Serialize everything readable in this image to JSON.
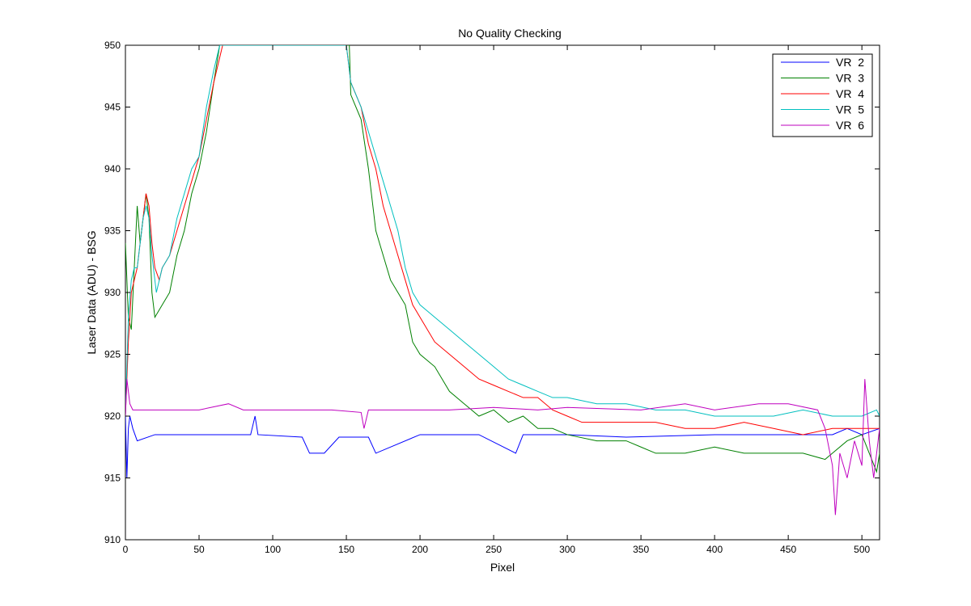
{
  "chart_data": {
    "type": "line",
    "title": "No Quality Checking",
    "xlabel": "Pixel",
    "ylabel": "Laser Data (ADU) - BSG",
    "xlim": [
      0,
      512
    ],
    "ylim": [
      910,
      950
    ],
    "xticks": [
      0,
      50,
      100,
      150,
      200,
      250,
      300,
      350,
      400,
      450,
      500
    ],
    "yticks": [
      910,
      915,
      920,
      925,
      930,
      935,
      940,
      945,
      950
    ],
    "grid": false,
    "legend_position": "top-right",
    "series": [
      {
        "name": "VR  2",
        "color": "#0000ff",
        "points": [
          [
            0,
            920
          ],
          [
            1,
            915
          ],
          [
            2,
            919
          ],
          [
            3,
            920
          ],
          [
            5,
            919
          ],
          [
            8,
            918
          ],
          [
            20,
            918.5
          ],
          [
            50,
            918.5
          ],
          [
            85,
            918.5
          ],
          [
            88,
            920
          ],
          [
            90,
            918.5
          ],
          [
            120,
            918.3
          ],
          [
            125,
            917
          ],
          [
            135,
            917
          ],
          [
            145,
            918.3
          ],
          [
            165,
            918.3
          ],
          [
            170,
            917
          ],
          [
            200,
            918.5
          ],
          [
            240,
            918.5
          ],
          [
            265,
            917
          ],
          [
            270,
            918.5
          ],
          [
            300,
            918.5
          ],
          [
            340,
            918.3
          ],
          [
            400,
            918.5
          ],
          [
            450,
            918.5
          ],
          [
            480,
            918.5
          ],
          [
            490,
            919
          ],
          [
            500,
            918.5
          ],
          [
            512,
            919
          ]
        ]
      },
      {
        "name": "VR  3",
        "color": "#008000",
        "points": [
          [
            0,
            934
          ],
          [
            2,
            928
          ],
          [
            4,
            927
          ],
          [
            6,
            932
          ],
          [
            8,
            937
          ],
          [
            10,
            934
          ],
          [
            12,
            936
          ],
          [
            14,
            938
          ],
          [
            16,
            936
          ],
          [
            18,
            930
          ],
          [
            20,
            928
          ],
          [
            25,
            929
          ],
          [
            30,
            930
          ],
          [
            35,
            933
          ],
          [
            40,
            935
          ],
          [
            45,
            938
          ],
          [
            50,
            940
          ],
          [
            55,
            943
          ],
          [
            60,
            947
          ],
          [
            64,
            950
          ],
          [
            152,
            950
          ],
          [
            153,
            946
          ],
          [
            160,
            944
          ],
          [
            165,
            940
          ],
          [
            170,
            935
          ],
          [
            175,
            933
          ],
          [
            180,
            931
          ],
          [
            185,
            930
          ],
          [
            190,
            929
          ],
          [
            195,
            926
          ],
          [
            200,
            925
          ],
          [
            210,
            924
          ],
          [
            220,
            922
          ],
          [
            230,
            921
          ],
          [
            240,
            920
          ],
          [
            250,
            920.5
          ],
          [
            260,
            919.5
          ],
          [
            270,
            920
          ],
          [
            280,
            919
          ],
          [
            290,
            919
          ],
          [
            300,
            918.5
          ],
          [
            320,
            918
          ],
          [
            340,
            918
          ],
          [
            350,
            917.5
          ],
          [
            360,
            917
          ],
          [
            380,
            917
          ],
          [
            400,
            917.5
          ],
          [
            420,
            917
          ],
          [
            440,
            917
          ],
          [
            460,
            917
          ],
          [
            475,
            916.5
          ],
          [
            480,
            917
          ],
          [
            490,
            918
          ],
          [
            500,
            918.5
          ],
          [
            505,
            917
          ],
          [
            510,
            915.5
          ],
          [
            512,
            917
          ]
        ]
      },
      {
        "name": "VR  4",
        "color": "#ff0000",
        "points": [
          [
            0,
            920
          ],
          [
            2,
            926
          ],
          [
            4,
            930
          ],
          [
            6,
            931
          ],
          [
            8,
            932
          ],
          [
            10,
            934
          ],
          [
            12,
            936
          ],
          [
            14,
            938
          ],
          [
            16,
            937
          ],
          [
            18,
            934
          ],
          [
            20,
            932
          ],
          [
            23,
            931
          ],
          [
            25,
            932
          ],
          [
            30,
            933
          ],
          [
            35,
            935
          ],
          [
            40,
            937
          ],
          [
            45,
            939
          ],
          [
            50,
            941
          ],
          [
            55,
            944
          ],
          [
            60,
            947
          ],
          [
            66,
            950
          ],
          [
            150,
            950
          ],
          [
            153,
            947
          ],
          [
            160,
            945
          ],
          [
            165,
            942
          ],
          [
            170,
            940
          ],
          [
            175,
            937
          ],
          [
            180,
            935
          ],
          [
            185,
            933
          ],
          [
            190,
            931
          ],
          [
            195,
            929
          ],
          [
            200,
            928
          ],
          [
            210,
            926
          ],
          [
            220,
            925
          ],
          [
            230,
            924
          ],
          [
            240,
            923
          ],
          [
            250,
            922.5
          ],
          [
            260,
            922
          ],
          [
            270,
            921.5
          ],
          [
            280,
            921.5
          ],
          [
            290,
            920.5
          ],
          [
            300,
            920
          ],
          [
            310,
            919.5
          ],
          [
            320,
            919.5
          ],
          [
            340,
            919.5
          ],
          [
            360,
            919.5
          ],
          [
            380,
            919
          ],
          [
            400,
            919
          ],
          [
            420,
            919.5
          ],
          [
            440,
            919
          ],
          [
            460,
            918.5
          ],
          [
            480,
            919
          ],
          [
            500,
            919
          ],
          [
            512,
            919
          ]
        ]
      },
      {
        "name": "VR  5",
        "color": "#00bfbf",
        "points": [
          [
            0,
            920
          ],
          [
            2,
            928
          ],
          [
            4,
            931
          ],
          [
            6,
            932
          ],
          [
            8,
            932
          ],
          [
            10,
            934
          ],
          [
            12,
            936
          ],
          [
            14,
            937
          ],
          [
            16,
            936
          ],
          [
            18,
            933
          ],
          [
            21,
            930
          ],
          [
            25,
            932
          ],
          [
            30,
            933
          ],
          [
            35,
            936
          ],
          [
            40,
            938
          ],
          [
            45,
            940
          ],
          [
            50,
            941
          ],
          [
            55,
            945
          ],
          [
            60,
            948
          ],
          [
            64,
            950
          ],
          [
            150,
            950
          ],
          [
            153,
            947
          ],
          [
            160,
            945
          ],
          [
            165,
            943
          ],
          [
            170,
            941
          ],
          [
            175,
            939
          ],
          [
            180,
            937
          ],
          [
            185,
            935
          ],
          [
            190,
            932
          ],
          [
            195,
            930
          ],
          [
            200,
            929
          ],
          [
            210,
            928
          ],
          [
            220,
            927
          ],
          [
            230,
            926
          ],
          [
            240,
            925
          ],
          [
            250,
            924
          ],
          [
            260,
            923
          ],
          [
            270,
            922.5
          ],
          [
            280,
            922
          ],
          [
            290,
            921.5
          ],
          [
            300,
            921.5
          ],
          [
            320,
            921
          ],
          [
            340,
            921
          ],
          [
            360,
            920.5
          ],
          [
            380,
            920.5
          ],
          [
            400,
            920
          ],
          [
            420,
            920
          ],
          [
            440,
            920
          ],
          [
            460,
            920.5
          ],
          [
            480,
            920
          ],
          [
            500,
            920
          ],
          [
            510,
            920.5
          ],
          [
            512,
            920
          ]
        ]
      },
      {
        "name": "VR  6",
        "color": "#bf00bf",
        "points": [
          [
            0,
            920
          ],
          [
            1,
            923
          ],
          [
            3,
            921
          ],
          [
            5,
            920.5
          ],
          [
            20,
            920.5
          ],
          [
            50,
            920.5
          ],
          [
            70,
            921
          ],
          [
            80,
            920.5
          ],
          [
            120,
            920.5
          ],
          [
            140,
            920.5
          ],
          [
            160,
            920.3
          ],
          [
            162,
            919
          ],
          [
            165,
            920.5
          ],
          [
            200,
            920.5
          ],
          [
            220,
            920.5
          ],
          [
            250,
            920.7
          ],
          [
            280,
            920.5
          ],
          [
            300,
            920.7
          ],
          [
            350,
            920.5
          ],
          [
            380,
            921
          ],
          [
            400,
            920.5
          ],
          [
            430,
            921
          ],
          [
            450,
            921
          ],
          [
            470,
            920.5
          ],
          [
            475,
            919
          ],
          [
            480,
            916
          ],
          [
            482,
            912
          ],
          [
            485,
            917
          ],
          [
            490,
            915
          ],
          [
            495,
            918
          ],
          [
            500,
            916
          ],
          [
            502,
            923
          ],
          [
            505,
            918
          ],
          [
            508,
            915
          ],
          [
            512,
            919
          ]
        ]
      }
    ]
  }
}
